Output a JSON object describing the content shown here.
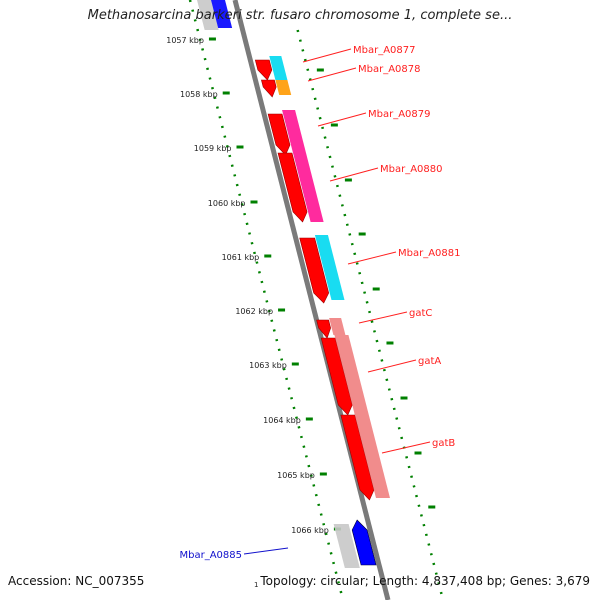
{
  "title": "Methanosarcina barkeri str. fusaro chromosome 1, complete se...",
  "accession": "Accession: NC_007355",
  "summary": "Topology: circular; Length: 4,837,408 bp; Genes: 3,679",
  "corner_tick": "1",
  "kbp_ticks": [
    "1057 kbp",
    "1058 kbp",
    "1059 kbp",
    "1060 kbp",
    "1061 kbp",
    "1062 kbp",
    "1063 kbp",
    "1064 kbp",
    "1065 kbp",
    "1066 kbp"
  ],
  "genes": [
    {
      "name": "Mbar_A0877",
      "color": "#ff2020",
      "kind": "gene"
    },
    {
      "name": "Mbar_A0878",
      "color": "#ff2020",
      "kind": "gene"
    },
    {
      "name": "Mbar_A0879",
      "color": "#ff2020",
      "kind": "gene"
    },
    {
      "name": "Mbar_A0880",
      "color": "#ff2020",
      "kind": "gene"
    },
    {
      "name": "Mbar_A0881",
      "color": "#ff2020",
      "kind": "gene"
    },
    {
      "name": "gatC",
      "color": "#ff2020",
      "kind": "gene"
    },
    {
      "name": "gatA",
      "color": "#ff2020",
      "kind": "gene"
    },
    {
      "name": "gatB",
      "color": "#ff2020",
      "kind": "gene"
    },
    {
      "name": "Mbar_A0885",
      "color": "#1010cc",
      "kind": "gene"
    }
  ],
  "colors": {
    "cds_forward": "#ff0000",
    "cds_reverse": "#0000ff",
    "cog_cyan": "#00d8f0",
    "cog_orange": "#ff9900",
    "cog_magenta": "#ff1493",
    "cog_salmon": "#f08080",
    "cog_grey": "#c8c8c8",
    "tick_green": "#008000",
    "label_red": "#cc0000",
    "label_blue": "#0000cc"
  }
}
